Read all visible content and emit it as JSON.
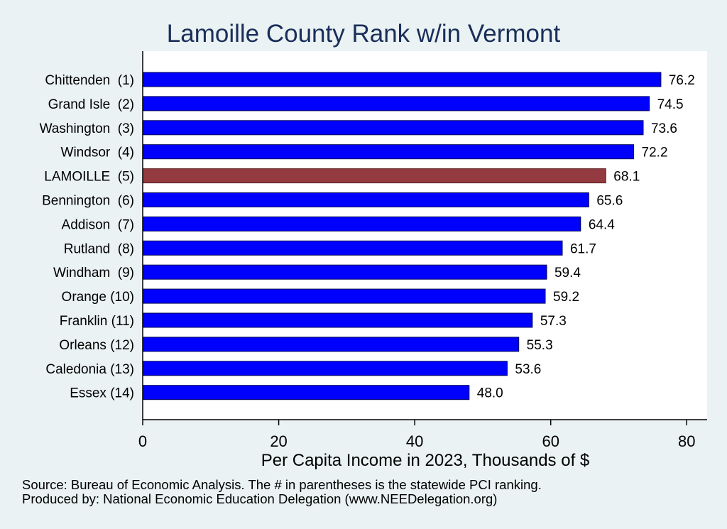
{
  "chart_data": {
    "type": "bar",
    "orientation": "horizontal",
    "title": "Lamoille County Rank w/in Vermont",
    "xlabel": "Per Capita Income in 2023, Thousands of $",
    "ylabel": "",
    "xlim": [
      0,
      83
    ],
    "xticks": [
      "0",
      "20",
      "40",
      "60",
      "80"
    ],
    "categories": [
      "Chittenden  (1)",
      "Grand Isle  (2)",
      "Washington  (3)",
      "Windsor  (4)",
      "LAMOILLE  (5)",
      "Bennington  (6)",
      "Addison  (7)",
      "Rutland  (8)",
      "Windham  (9)",
      "Orange (10)",
      "Franklin (11)",
      "Orleans (12)",
      "Caledonia (13)",
      "Essex (14)"
    ],
    "values": [
      76.2,
      74.5,
      73.6,
      72.2,
      68.1,
      65.6,
      64.4,
      61.7,
      59.4,
      59.2,
      57.3,
      55.3,
      53.6,
      48.0
    ],
    "value_labels": [
      "76.2",
      "74.5",
      "73.6",
      "72.2",
      "68.1",
      "65.6",
      "64.4",
      "61.7",
      "59.4",
      "59.2",
      "57.3",
      "55.3",
      "53.6",
      "48.0"
    ],
    "highlight": "LAMOILLE  (5)",
    "grid": false,
    "legend": "none"
  },
  "colors": {
    "bar": "#0000ff",
    "highlight": "#943b42",
    "background": "#eaf2f3",
    "plot_background": "#ffffff",
    "title": "#1a2e5a"
  },
  "notes": {
    "source": "Source: Bureau of Economic Analysis. The # in parentheses is the statewide PCI ranking.",
    "producer": "Produced by: National Economic Education Delegation (www.NEEDelegation.org)"
  }
}
